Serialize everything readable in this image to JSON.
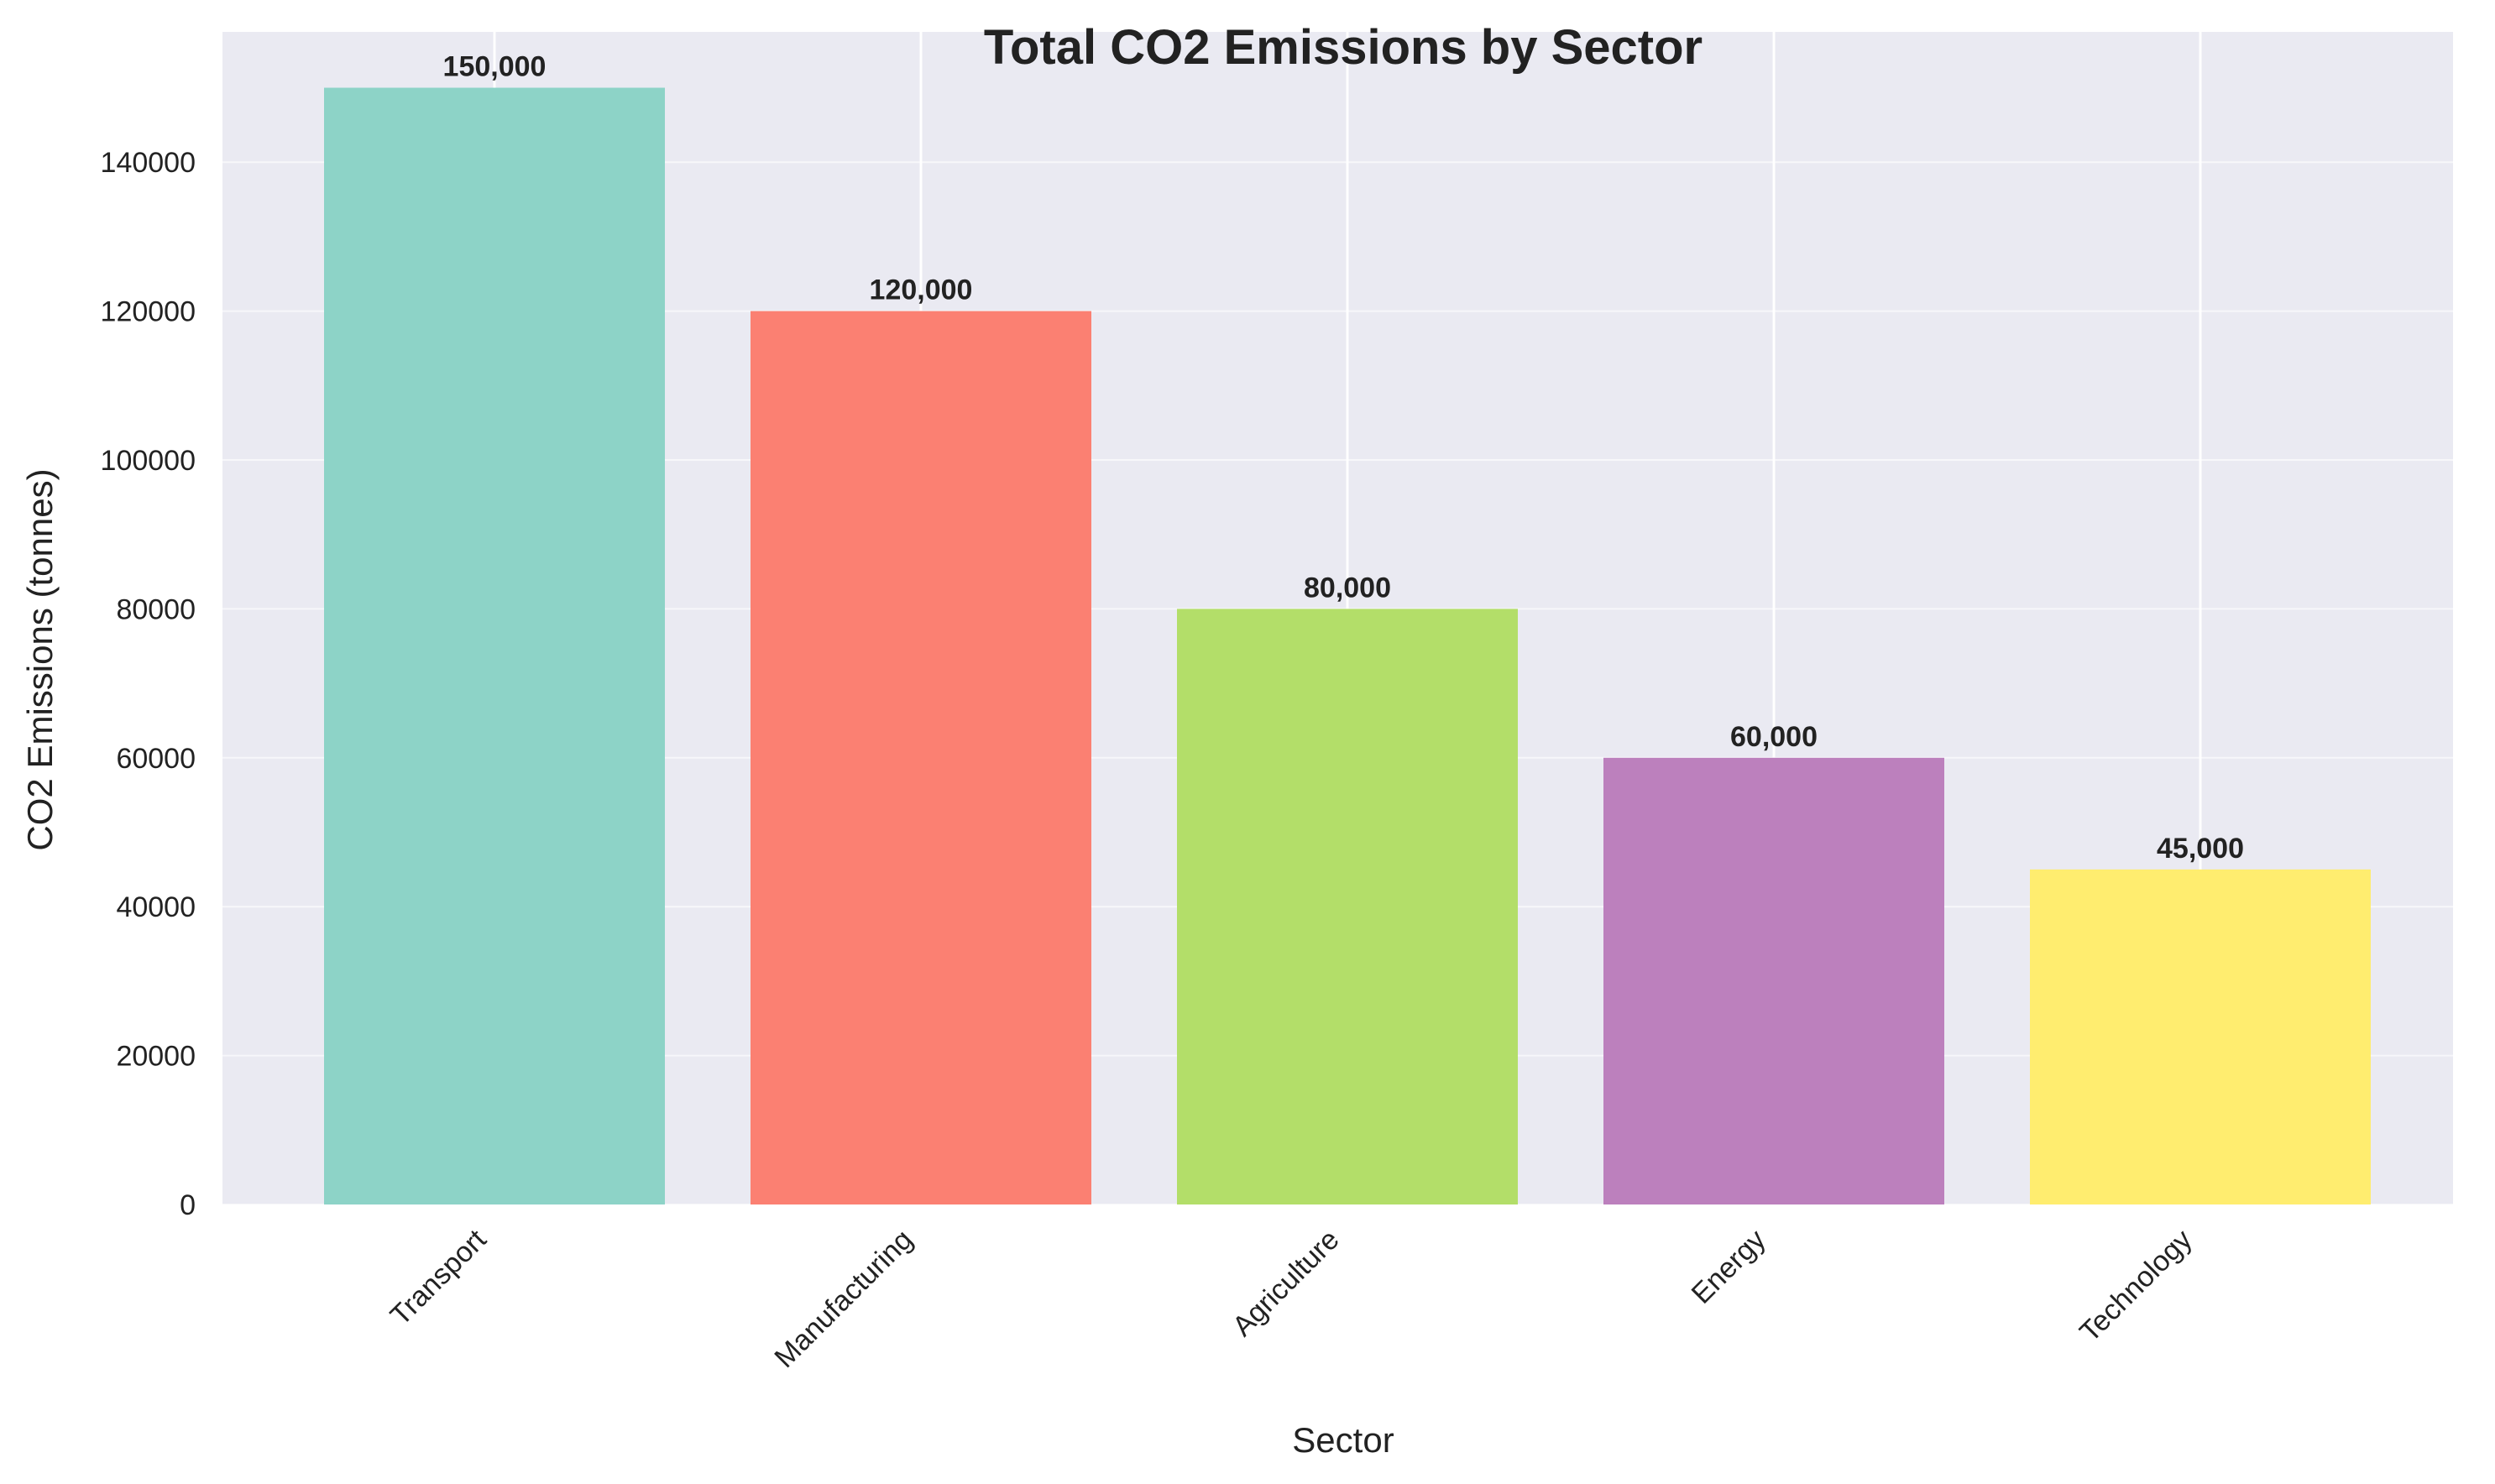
{
  "chart_data": {
    "type": "bar",
    "title": "Total CO2 Emissions by Sector",
    "xlabel": "Sector",
    "ylabel": "CO2 Emissions (tonnes)",
    "categories": [
      "Transport",
      "Manufacturing",
      "Agriculture",
      "Energy",
      "Technology"
    ],
    "values": [
      150000,
      120000,
      80000,
      60000,
      45000
    ],
    "value_labels": [
      "150,000",
      "120,000",
      "80,000",
      "60,000",
      "45,000"
    ],
    "colors": [
      "#8dd3c7",
      "#fb8072",
      "#b3de69",
      "#bc80bd",
      "#ffed6f"
    ],
    "yticks": [
      0,
      20000,
      40000,
      60000,
      80000,
      100000,
      120000,
      140000
    ],
    "ylim": [
      0,
      157500
    ],
    "grid": true,
    "background": "#eaeaf2"
  }
}
